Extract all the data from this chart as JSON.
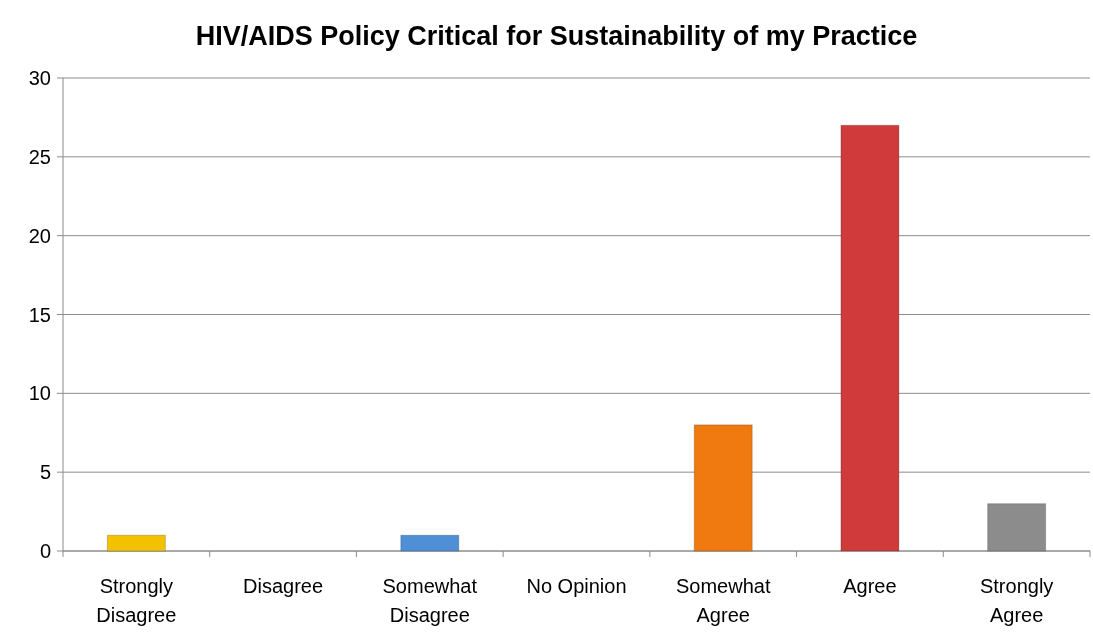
{
  "chart_data": {
    "type": "bar",
    "title": "HIV/AIDS Policy Critical  for Sustainability of my Practice",
    "categories": [
      "Strongly Disagree",
      "Disagree",
      "Somewhat Disagree",
      "No Opinion",
      "Somewhat Agree",
      "Agree",
      "Strongly Agree"
    ],
    "values": [
      1,
      0,
      1,
      0,
      8,
      27,
      3
    ],
    "colors": [
      "#f2c200",
      "#9bbb59",
      "#4f8fd6",
      "#8064a2",
      "#f07a10",
      "#d03a3a",
      "#8c8c8c"
    ],
    "ylim": [
      0,
      30
    ],
    "yticks": [
      0,
      5,
      10,
      15,
      20,
      25,
      30
    ],
    "grid": "y"
  }
}
